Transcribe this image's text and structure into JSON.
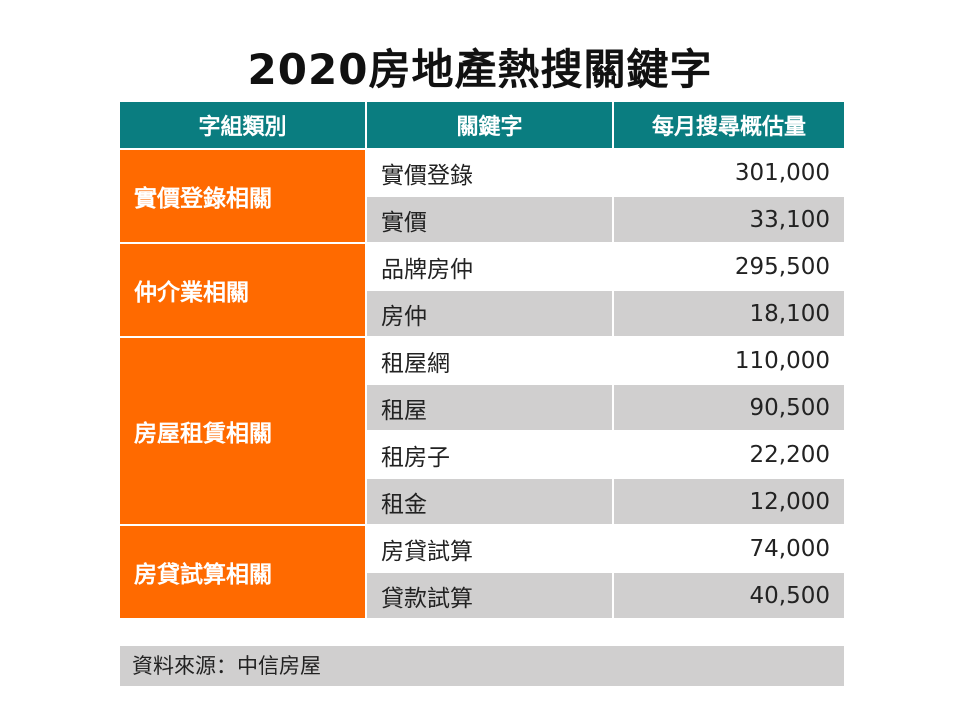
{
  "title": "2020房地產熱搜關鍵字",
  "headers": [
    "字組類別",
    "關鍵字",
    "每月搜尋概估量"
  ],
  "groups": [
    {
      "category": "實價登錄相關",
      "rows": [
        {
          "keyword": "實價登錄",
          "volume": "301,000"
        },
        {
          "keyword": "實價",
          "volume": "33,100"
        }
      ]
    },
    {
      "category": "仲介業相關",
      "rows": [
        {
          "keyword": "品牌房仲",
          "volume": "295,500"
        },
        {
          "keyword": "房仲",
          "volume": "18,100"
        }
      ]
    },
    {
      "category": "房屋租賃相關",
      "rows": [
        {
          "keyword": "租屋網",
          "volume": "110,000"
        },
        {
          "keyword": "租屋",
          "volume": "90,500"
        },
        {
          "keyword": "租房子",
          "volume": "22,200"
        },
        {
          "keyword": "租金",
          "volume": "12,000"
        }
      ]
    },
    {
      "category": "房貸試算相關",
      "rows": [
        {
          "keyword": "房貸試算",
          "volume": "74,000"
        },
        {
          "keyword": "貸款試算",
          "volume": "40,500"
        }
      ]
    }
  ],
  "source": "資料來源：中信房屋",
  "colors": {
    "header": "#0a7d80",
    "category": "#ff6a00",
    "stripe": "#d0cfcf"
  },
  "chart_data": {
    "type": "table",
    "title": "2020房地產熱搜關鍵字",
    "columns": [
      "字組類別",
      "關鍵字",
      "每月搜尋概估量"
    ],
    "rows": [
      [
        "實價登錄相關",
        "實價登錄",
        301000
      ],
      [
        "實價登錄相關",
        "實價",
        33100
      ],
      [
        "仲介業相關",
        "品牌房仲",
        295500
      ],
      [
        "仲介業相關",
        "房仲",
        18100
      ],
      [
        "房屋租賃相關",
        "租屋網",
        110000
      ],
      [
        "房屋租賃相關",
        "租屋",
        90500
      ],
      [
        "房屋租賃相關",
        "租房子",
        22200
      ],
      [
        "房屋租賃相關",
        "租金",
        12000
      ],
      [
        "房貸試算相關",
        "房貸試算",
        74000
      ],
      [
        "房貸試算相關",
        "貸款試算",
        40500
      ]
    ]
  }
}
